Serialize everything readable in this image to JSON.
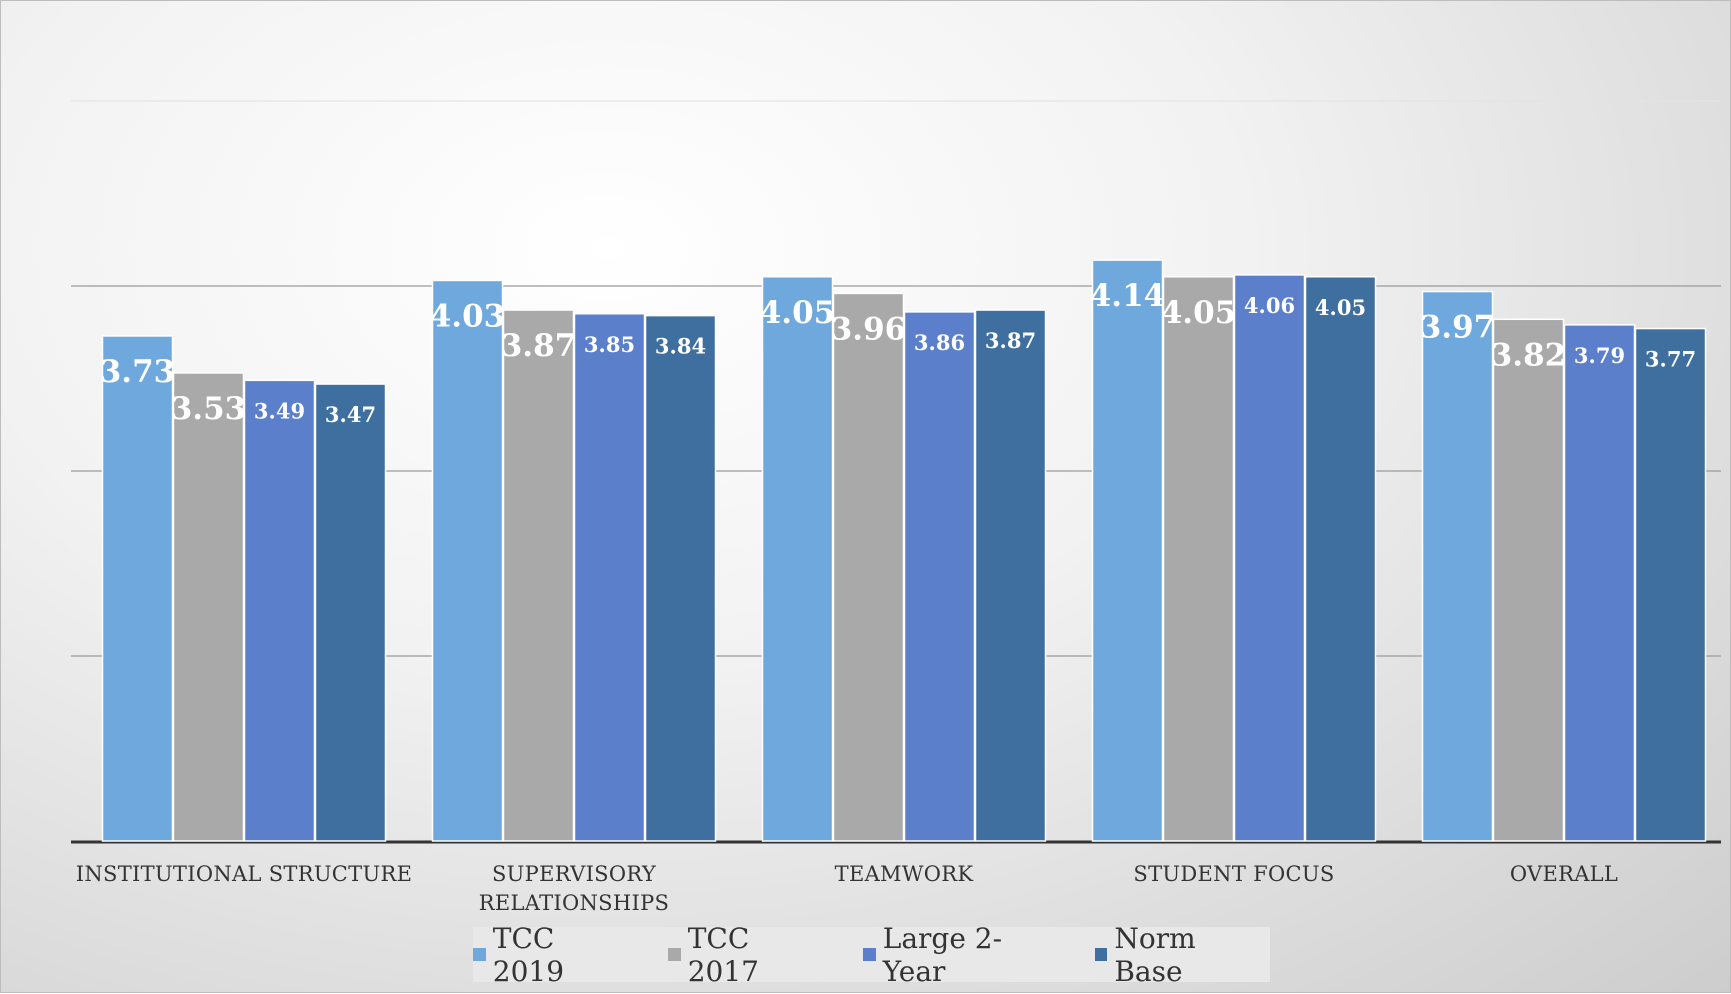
{
  "chart_data": {
    "type": "bar",
    "categories": [
      "INSTITUTIONAL STRUCTURE",
      "SUPERVISORY RELATIONSHIPS",
      "TEAMWORK",
      "STUDENT FOCUS",
      "OVERALL"
    ],
    "category_lines": [
      [
        "INSTITUTIONAL STRUCTURE"
      ],
      [
        "SUPERVISORY",
        "RELATIONSHIPS"
      ],
      [
        "TEAMWORK"
      ],
      [
        "STUDENT FOCUS"
      ],
      [
        "OVERALL"
      ]
    ],
    "series": [
      {
        "name": "TCC 2019",
        "color": "#6FA8DC",
        "values": [
          3.73,
          4.03,
          4.05,
          4.14,
          3.97
        ],
        "labels": [
          "3.73",
          "4.03",
          "4.05",
          "4.14",
          "3.97"
        ]
      },
      {
        "name": "TCC 2017",
        "color": "#A9A9A9",
        "values": [
          3.53,
          3.87,
          3.96,
          4.05,
          3.82
        ],
        "labels": [
          "3.53",
          "3.87",
          "3.96",
          "4.05",
          "3.82"
        ]
      },
      {
        "name": "Large 2-Year",
        "color": "#5B7FCB",
        "values": [
          3.49,
          3.85,
          3.86,
          4.06,
          3.79
        ],
        "labels": [
          "3.49",
          "3.85",
          "3.86",
          "4.06",
          "3.79"
        ]
      },
      {
        "name": "Norm Base",
        "color": "#3E6F9E",
        "values": [
          3.47,
          3.84,
          3.87,
          4.05,
          3.77
        ],
        "labels": [
          "3.47",
          "3.84",
          "3.87",
          "4.05",
          "3.77"
        ]
      }
    ],
    "ylim": [
      1,
      5
    ],
    "grid": true,
    "legend_position": "bottom",
    "title": "",
    "xlabel": "",
    "ylabel": ""
  }
}
